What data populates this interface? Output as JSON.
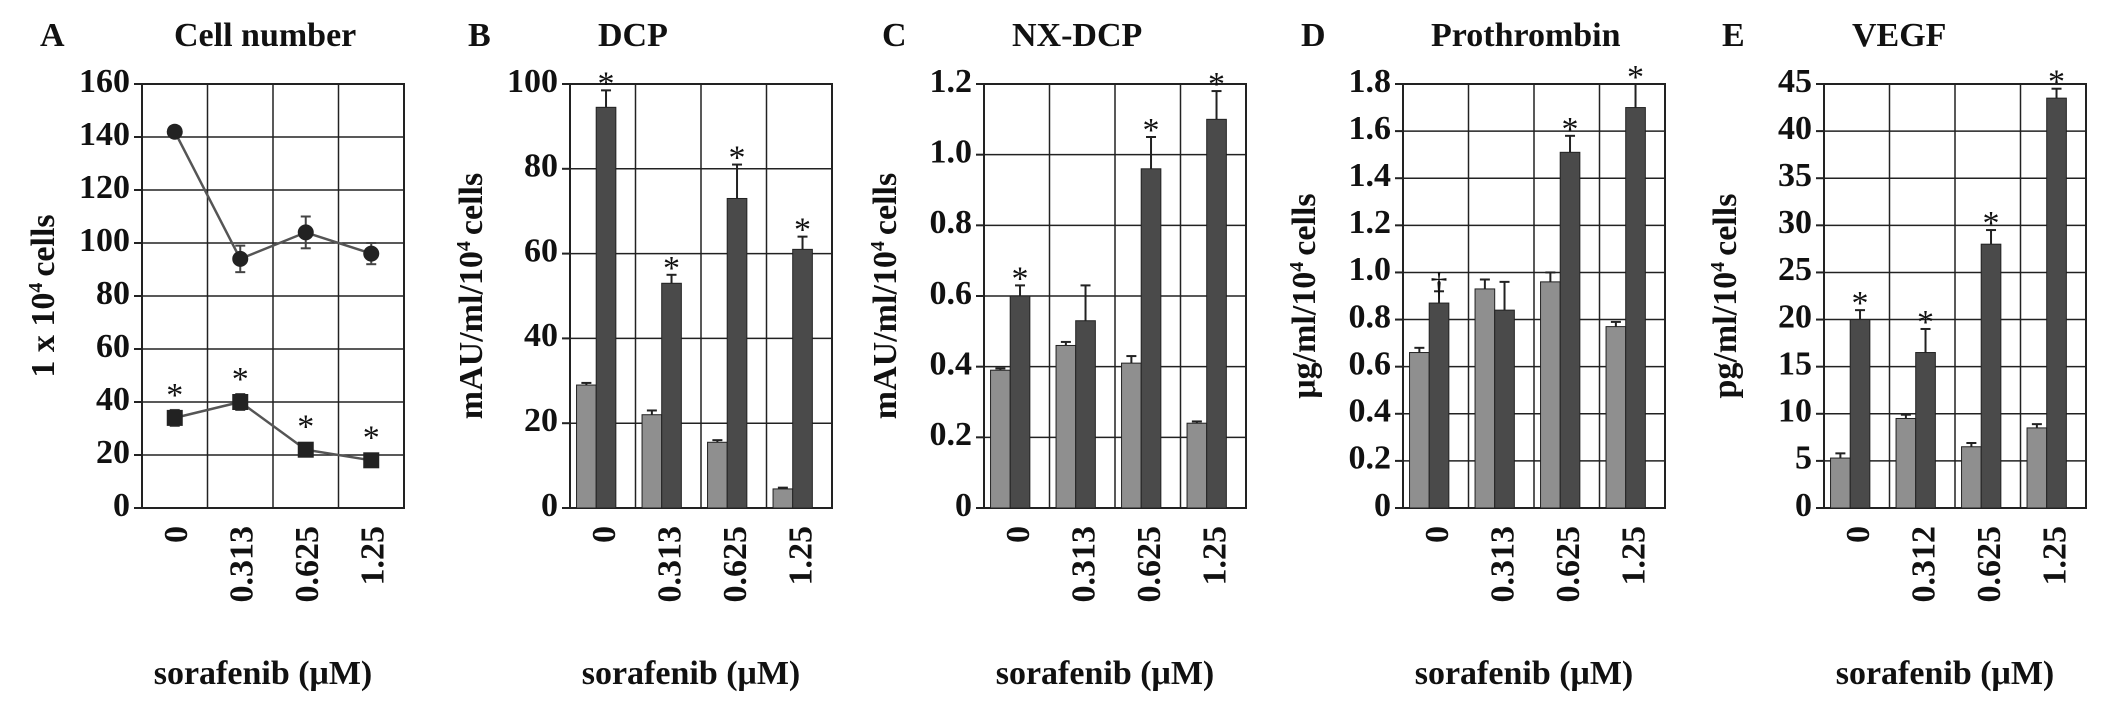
{
  "chart_data": [
    {
      "type": "line",
      "letter": "A",
      "title": "Cell number",
      "ylabel_parts": [
        "1 x 10",
        "4",
        "cells"
      ],
      "xlabel": "sorafenib (μM)",
      "categories": [
        "0",
        "0.313",
        "0.625",
        "1.25"
      ],
      "series": [
        {
          "color": "#222222",
          "marker": "circle",
          "values": [
            142,
            94,
            104,
            96
          ],
          "errors": [
            2,
            5,
            6,
            4
          ],
          "annotations": [
            null,
            null,
            null,
            null
          ]
        },
        {
          "color": "#222222",
          "marker": "square",
          "values": [
            34,
            40,
            22,
            18
          ],
          "errors": [
            3,
            3,
            2,
            2
          ],
          "annotations": [
            "*",
            "*",
            "*",
            "*"
          ]
        }
      ],
      "ylim": [
        0,
        160
      ],
      "yticks": [
        0,
        20,
        40,
        60,
        80,
        100,
        120,
        140,
        160
      ],
      "grid": true
    },
    {
      "type": "bar",
      "letter": "B",
      "title": "DCP",
      "ylabel_parts": [
        "mAU/ml/10",
        "4",
        "cells"
      ],
      "xlabel": "sorafenib (μM)",
      "categories": [
        "0",
        "0.313",
        "0.625",
        "1.25"
      ],
      "series": [
        {
          "color": "#8f8f8f",
          "values": [
            29,
            22,
            15.5,
            4.5
          ],
          "errors": [
            0.5,
            1,
            0.5,
            0.3
          ],
          "annotations": [
            null,
            null,
            null,
            null
          ]
        },
        {
          "color": "#4a4a4a",
          "values": [
            94.5,
            53,
            73,
            61
          ],
          "errors": [
            4,
            2,
            8,
            3
          ],
          "annotations": [
            "*",
            "*",
            "*",
            "*"
          ]
        }
      ],
      "ylim": [
        0,
        100
      ],
      "yticks": [
        0,
        20,
        40,
        60,
        80,
        100
      ],
      "grid": true
    },
    {
      "type": "bar",
      "letter": "C",
      "title": "NX-DCP",
      "ylabel_parts": [
        "mAU/ml/10",
        "4",
        "cells"
      ],
      "xlabel": "sorafenib (μM)",
      "categories": [
        "0",
        "0.313",
        "0.625",
        "1.25"
      ],
      "series": [
        {
          "color": "#8f8f8f",
          "values": [
            0.39,
            0.46,
            0.41,
            0.24
          ],
          "errors": [
            0.005,
            0.01,
            0.02,
            0.005
          ],
          "annotations": [
            null,
            null,
            null,
            null
          ]
        },
        {
          "color": "#4a4a4a",
          "values": [
            0.6,
            0.53,
            0.96,
            1.1
          ],
          "errors": [
            0.03,
            0.1,
            0.09,
            0.08
          ],
          "annotations": [
            "*",
            null,
            "*",
            "*"
          ]
        }
      ],
      "ylim": [
        0,
        1.2
      ],
      "yticks": [
        0,
        0.2,
        0.4,
        0.6,
        0.8,
        {
          "value": 1,
          "label": "1.0"
        },
        1.2
      ],
      "grid": true
    },
    {
      "type": "bar",
      "letter": "D",
      "title": "Prothrombin",
      "ylabel_parts": [
        "μg/ml/10",
        "4",
        "cells"
      ],
      "xlabel": "sorafenib (μM)",
      "categories": [
        "0",
        "0.313",
        "0.625",
        "1.25"
      ],
      "series": [
        {
          "color": "#8f8f8f",
          "values": [
            0.66,
            0.93,
            0.96,
            0.77
          ],
          "errors": [
            0.02,
            0.04,
            0.04,
            0.02
          ],
          "annotations": [
            null,
            null,
            null,
            null
          ]
        },
        {
          "color": "#4a4a4a",
          "values": [
            0.87,
            0.84,
            1.51,
            1.7
          ],
          "errors": [
            0.05,
            0.12,
            0.07,
            0.1
          ],
          "annotations": [
            "†",
            null,
            "*",
            "*"
          ]
        }
      ],
      "ylim": [
        0,
        1.8
      ],
      "yticks": [
        0,
        0.2,
        0.4,
        0.6,
        0.8,
        {
          "value": 1,
          "label": "1.0"
        },
        1.2,
        1.4,
        1.6,
        1.8
      ],
      "grid": true
    },
    {
      "type": "bar",
      "letter": "E",
      "title": "VEGF",
      "ylabel_parts": [
        "pg/ml/10",
        "4",
        "cells"
      ],
      "xlabel": "sorafenib (μM)",
      "categories": [
        "0",
        "0.312",
        "0.625",
        "1.25"
      ],
      "series": [
        {
          "color": "#8f8f8f",
          "values": [
            5.3,
            9.5,
            6.5,
            8.5
          ],
          "errors": [
            0.5,
            0.4,
            0.4,
            0.4
          ],
          "annotations": [
            null,
            null,
            null,
            null
          ]
        },
        {
          "color": "#4a4a4a",
          "values": [
            20,
            16.5,
            28,
            43.5
          ],
          "errors": [
            1,
            2.5,
            1.5,
            1
          ],
          "annotations": [
            "*",
            "*",
            "*",
            "*"
          ]
        }
      ],
      "ylim": [
        0,
        45
      ],
      "yticks": [
        0,
        5,
        10,
        15,
        20,
        25,
        30,
        35,
        40,
        45
      ],
      "grid": true
    }
  ]
}
